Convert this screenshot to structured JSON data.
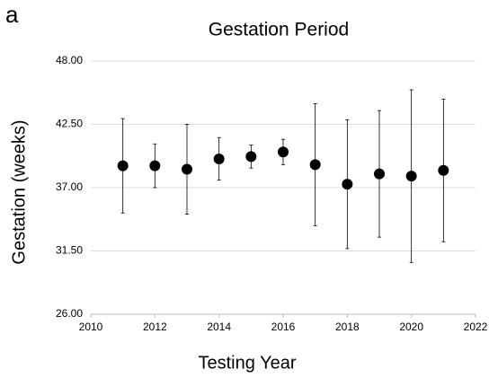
{
  "chart_data": {
    "type": "scatter",
    "panel_label": "a",
    "title": "Gestation Period",
    "x_label": "Testing Year",
    "y_label": "Gestation (weeks)",
    "x": [
      2011,
      2012,
      2013,
      2014,
      2015,
      2016,
      2017,
      2018,
      2019,
      2020,
      2021
    ],
    "values": [
      38.9,
      38.9,
      38.6,
      39.5,
      39.7,
      40.1,
      39.0,
      37.3,
      38.2,
      38.0,
      38.5
    ],
    "errors": [
      4.1,
      1.9,
      3.9,
      1.85,
      1.0,
      1.1,
      5.3,
      5.6,
      5.5,
      7.5,
      6.2
    ],
    "color": "#000000",
    "xlim": [
      2010,
      2022
    ],
    "xticks": [
      2010,
      2012,
      2014,
      2016,
      2018,
      2020,
      2022
    ],
    "ylim": [
      26,
      48
    ],
    "yticks": [
      {
        "value": 26,
        "label": "26.00"
      },
      {
        "value": 31.5,
        "label": "31.50"
      },
      {
        "value": 37,
        "label": "37.00"
      },
      {
        "value": 42.5,
        "label": "42.50"
      },
      {
        "value": 48,
        "label": "48.00"
      }
    ],
    "grid": true
  }
}
